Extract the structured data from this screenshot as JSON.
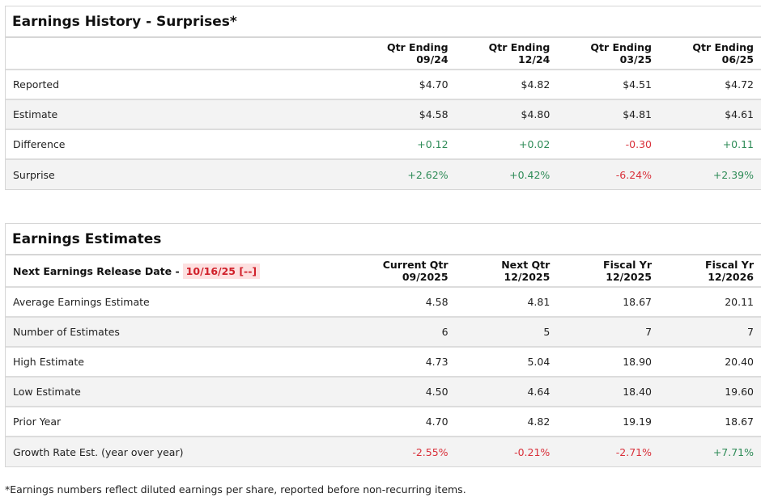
{
  "history": {
    "title": "Earnings History - Surprises*",
    "headers": [
      [
        "Qtr Ending",
        "09/24"
      ],
      [
        "Qtr Ending",
        "12/24"
      ],
      [
        "Qtr Ending",
        "03/25"
      ],
      [
        "Qtr Ending",
        "06/25"
      ]
    ],
    "rows": [
      {
        "label": "Reported",
        "values": [
          "$4.70",
          "$4.82",
          "$4.51",
          "$4.72"
        ],
        "cls": [
          "",
          "",
          "",
          ""
        ]
      },
      {
        "label": "Estimate",
        "values": [
          "$4.58",
          "$4.80",
          "$4.81",
          "$4.61"
        ],
        "cls": [
          "",
          "",
          "",
          ""
        ]
      },
      {
        "label": "Difference",
        "values": [
          "+0.12",
          "+0.02",
          "-0.30",
          "+0.11"
        ],
        "cls": [
          "pos",
          "pos",
          "neg",
          "pos"
        ]
      },
      {
        "label": "Surprise",
        "values": [
          "+2.62%",
          "+0.42%",
          "-6.24%",
          "+2.39%"
        ],
        "cls": [
          "pos",
          "pos",
          "neg",
          "pos"
        ]
      }
    ]
  },
  "estimates": {
    "title": "Earnings Estimates",
    "release_label": "Next Earnings Release Date -",
    "release_date": "10/16/25 [--]",
    "headers": [
      [
        "Current Qtr",
        "09/2025"
      ],
      [
        "Next Qtr",
        "12/2025"
      ],
      [
        "Fiscal Yr",
        "12/2025"
      ],
      [
        "Fiscal Yr",
        "12/2026"
      ]
    ],
    "rows": [
      {
        "label": "Average Earnings Estimate",
        "values": [
          "4.58",
          "4.81",
          "18.67",
          "20.11"
        ],
        "cls": [
          "",
          "",
          "",
          ""
        ]
      },
      {
        "label": "Number of Estimates",
        "values": [
          "6",
          "5",
          "7",
          "7"
        ],
        "cls": [
          "",
          "",
          "",
          ""
        ]
      },
      {
        "label": "High Estimate",
        "values": [
          "4.73",
          "5.04",
          "18.90",
          "20.40"
        ],
        "cls": [
          "",
          "",
          "",
          ""
        ]
      },
      {
        "label": "Low Estimate",
        "values": [
          "4.50",
          "4.64",
          "18.40",
          "19.60"
        ],
        "cls": [
          "",
          "",
          "",
          ""
        ]
      },
      {
        "label": "Prior Year",
        "values": [
          "4.70",
          "4.82",
          "19.19",
          "18.67"
        ],
        "cls": [
          "",
          "",
          "",
          ""
        ]
      },
      {
        "label": "Growth Rate Est. (year over year)",
        "values": [
          "-2.55%",
          "-0.21%",
          "-2.71%",
          "+7.71%"
        ],
        "cls": [
          "neg",
          "neg",
          "neg",
          "pos"
        ]
      }
    ]
  },
  "footnote": "*Earnings numbers reflect diluted earnings per share, reported before non-recurring items.",
  "colors": {
    "positive": "#2e8b57",
    "negative": "#d9303a",
    "highlight": "#fde0e0"
  }
}
